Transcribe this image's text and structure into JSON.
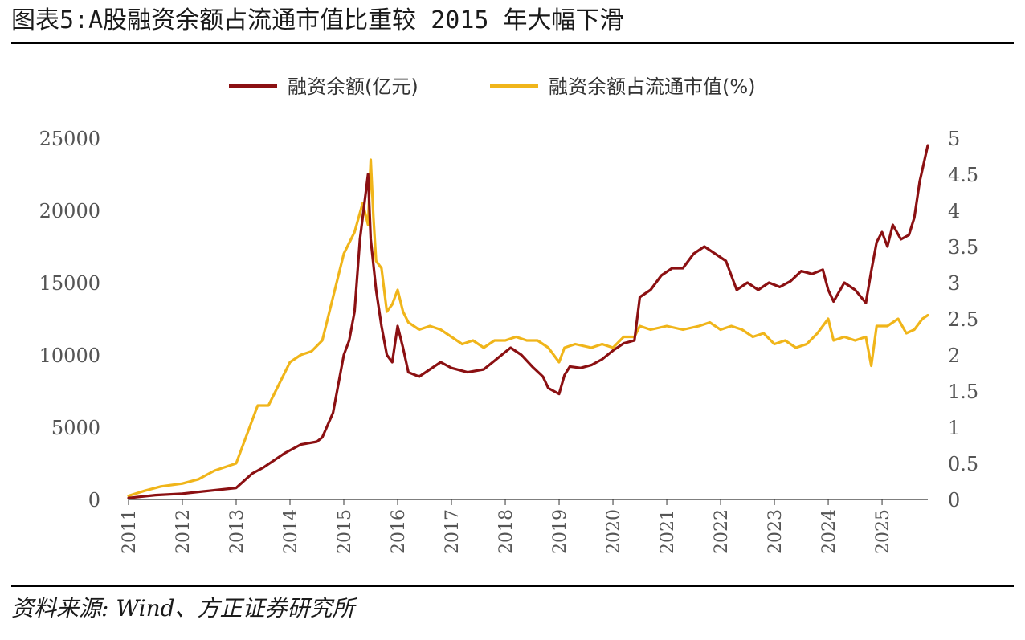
{
  "title": "图表5:A股融资余额占流通市值比重较 2015 年大幅下滑",
  "source": "资料来源: Wind、方正证券研究所",
  "colors": {
    "financing": "#8b1012",
    "ratio": "#f0b51a",
    "axis": "#555555",
    "rule": "#000000"
  },
  "chart_data": {
    "type": "line",
    "legend_position": "top-center",
    "grid": false,
    "x_ticks": [
      "2011",
      "2012",
      "2013",
      "2014",
      "2015",
      "2016",
      "2017",
      "2018",
      "2019",
      "2020",
      "2021",
      "2022",
      "2023",
      "2024",
      "2025"
    ],
    "xlim": [
      2011.0,
      2025.85
    ],
    "y_left": {
      "ticks": [
        "0",
        "5000",
        "10000",
        "15000",
        "20000",
        "25000"
      ],
      "lim": [
        0,
        25000
      ]
    },
    "y_right": {
      "ticks": [
        "0",
        "0.5",
        "1",
        "1.5",
        "2",
        "2.5",
        "3",
        "3.5",
        "4",
        "4.5",
        "5"
      ],
      "lim": [
        0,
        5
      ]
    },
    "series": [
      {
        "name": "融资余额(亿元)",
        "axis": "left",
        "points": [
          [
            2011.0,
            100
          ],
          [
            2011.5,
            300
          ],
          [
            2012.0,
            400
          ],
          [
            2012.5,
            600
          ],
          [
            2013.0,
            800
          ],
          [
            2013.3,
            1800
          ],
          [
            2013.5,
            2200
          ],
          [
            2013.9,
            3200
          ],
          [
            2014.2,
            3800
          ],
          [
            2014.5,
            4000
          ],
          [
            2014.6,
            4300
          ],
          [
            2014.8,
            6000
          ],
          [
            2015.0,
            10000
          ],
          [
            2015.1,
            11000
          ],
          [
            2015.2,
            13000
          ],
          [
            2015.3,
            18000
          ],
          [
            2015.45,
            22500
          ],
          [
            2015.5,
            18000
          ],
          [
            2015.6,
            14500
          ],
          [
            2015.7,
            12000
          ],
          [
            2015.8,
            10000
          ],
          [
            2015.9,
            9500
          ],
          [
            2016.0,
            12000
          ],
          [
            2016.1,
            10500
          ],
          [
            2016.2,
            8800
          ],
          [
            2016.4,
            8500
          ],
          [
            2016.6,
            9000
          ],
          [
            2016.8,
            9500
          ],
          [
            2017.0,
            9100
          ],
          [
            2017.3,
            8800
          ],
          [
            2017.6,
            9000
          ],
          [
            2017.8,
            9600
          ],
          [
            2018.0,
            10200
          ],
          [
            2018.1,
            10500
          ],
          [
            2018.3,
            10000
          ],
          [
            2018.5,
            9200
          ],
          [
            2018.7,
            8500
          ],
          [
            2018.8,
            7700
          ],
          [
            2019.0,
            7300
          ],
          [
            2019.1,
            8600
          ],
          [
            2019.2,
            9200
          ],
          [
            2019.4,
            9100
          ],
          [
            2019.6,
            9300
          ],
          [
            2019.8,
            9700
          ],
          [
            2020.0,
            10300
          ],
          [
            2020.2,
            10800
          ],
          [
            2020.4,
            11000
          ],
          [
            2020.5,
            14000
          ],
          [
            2020.7,
            14500
          ],
          [
            2020.9,
            15500
          ],
          [
            2021.1,
            16000
          ],
          [
            2021.3,
            16000
          ],
          [
            2021.5,
            17000
          ],
          [
            2021.7,
            17500
          ],
          [
            2021.9,
            17000
          ],
          [
            2022.1,
            16500
          ],
          [
            2022.3,
            14500
          ],
          [
            2022.5,
            15000
          ],
          [
            2022.7,
            14500
          ],
          [
            2022.9,
            15000
          ],
          [
            2023.1,
            14700
          ],
          [
            2023.3,
            15100
          ],
          [
            2023.5,
            15800
          ],
          [
            2023.7,
            15600
          ],
          [
            2023.9,
            15900
          ],
          [
            2024.0,
            14500
          ],
          [
            2024.1,
            13700
          ],
          [
            2024.3,
            15000
          ],
          [
            2024.5,
            14500
          ],
          [
            2024.7,
            13600
          ],
          [
            2024.8,
            15800
          ],
          [
            2024.9,
            17800
          ],
          [
            2025.0,
            18500
          ],
          [
            2025.1,
            17500
          ],
          [
            2025.2,
            19000
          ],
          [
            2025.35,
            18000
          ],
          [
            2025.5,
            18300
          ],
          [
            2025.6,
            19500
          ],
          [
            2025.7,
            22000
          ],
          [
            2025.85,
            24500
          ]
        ]
      },
      {
        "name": "融资余额占流通市值(%)",
        "axis": "right",
        "points": [
          [
            2011.0,
            0.05
          ],
          [
            2011.3,
            0.12
          ],
          [
            2011.6,
            0.18
          ],
          [
            2012.0,
            0.22
          ],
          [
            2012.3,
            0.28
          ],
          [
            2012.6,
            0.4
          ],
          [
            2013.0,
            0.5
          ],
          [
            2013.2,
            0.9
          ],
          [
            2013.4,
            1.3
          ],
          [
            2013.6,
            1.3
          ],
          [
            2013.8,
            1.6
          ],
          [
            2014.0,
            1.9
          ],
          [
            2014.2,
            2.0
          ],
          [
            2014.4,
            2.05
          ],
          [
            2014.6,
            2.2
          ],
          [
            2014.8,
            2.8
          ],
          [
            2015.0,
            3.4
          ],
          [
            2015.2,
            3.7
          ],
          [
            2015.35,
            4.1
          ],
          [
            2015.45,
            3.8
          ],
          [
            2015.5,
            4.7
          ],
          [
            2015.55,
            3.9
          ],
          [
            2015.6,
            3.3
          ],
          [
            2015.7,
            3.2
          ],
          [
            2015.8,
            2.6
          ],
          [
            2015.9,
            2.7
          ],
          [
            2016.0,
            2.9
          ],
          [
            2016.1,
            2.6
          ],
          [
            2016.2,
            2.45
          ],
          [
            2016.4,
            2.35
          ],
          [
            2016.6,
            2.4
          ],
          [
            2016.8,
            2.35
          ],
          [
            2017.0,
            2.25
          ],
          [
            2017.2,
            2.15
          ],
          [
            2017.4,
            2.2
          ],
          [
            2017.6,
            2.1
          ],
          [
            2017.8,
            2.2
          ],
          [
            2018.0,
            2.2
          ],
          [
            2018.2,
            2.25
          ],
          [
            2018.4,
            2.2
          ],
          [
            2018.6,
            2.2
          ],
          [
            2018.8,
            2.1
          ],
          [
            2019.0,
            1.9
          ],
          [
            2019.1,
            2.1
          ],
          [
            2019.3,
            2.15
          ],
          [
            2019.6,
            2.1
          ],
          [
            2019.8,
            2.15
          ],
          [
            2020.0,
            2.1
          ],
          [
            2020.2,
            2.25
          ],
          [
            2020.4,
            2.25
          ],
          [
            2020.5,
            2.4
          ],
          [
            2020.7,
            2.35
          ],
          [
            2021.0,
            2.4
          ],
          [
            2021.3,
            2.35
          ],
          [
            2021.6,
            2.4
          ],
          [
            2021.8,
            2.45
          ],
          [
            2022.0,
            2.35
          ],
          [
            2022.2,
            2.4
          ],
          [
            2022.4,
            2.35
          ],
          [
            2022.6,
            2.25
          ],
          [
            2022.8,
            2.3
          ],
          [
            2023.0,
            2.15
          ],
          [
            2023.2,
            2.2
          ],
          [
            2023.4,
            2.1
          ],
          [
            2023.6,
            2.15
          ],
          [
            2023.8,
            2.3
          ],
          [
            2024.0,
            2.5
          ],
          [
            2024.1,
            2.2
          ],
          [
            2024.3,
            2.25
          ],
          [
            2024.5,
            2.2
          ],
          [
            2024.7,
            2.25
          ],
          [
            2024.8,
            1.85
          ],
          [
            2024.9,
            2.4
          ],
          [
            2025.1,
            2.4
          ],
          [
            2025.3,
            2.5
          ],
          [
            2025.45,
            2.3
          ],
          [
            2025.6,
            2.35
          ],
          [
            2025.75,
            2.5
          ],
          [
            2025.85,
            2.55
          ]
        ]
      }
    ]
  }
}
